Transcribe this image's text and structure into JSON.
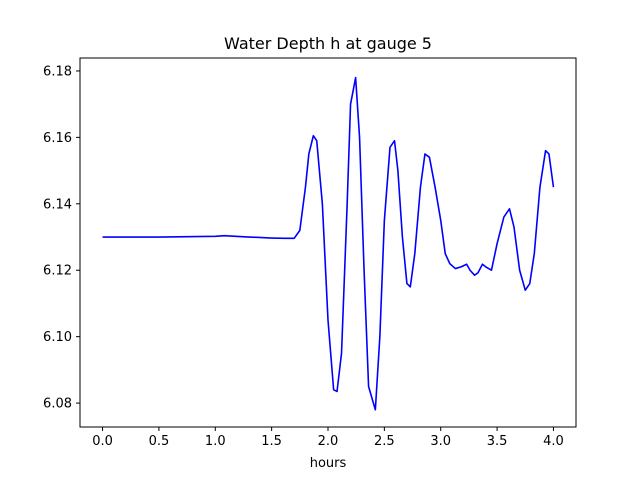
{
  "chart_data": {
    "type": "line",
    "title": "Water Depth h at gauge 5",
    "xlabel": "hours",
    "ylabel": "",
    "xlim": [
      -0.2,
      4.2
    ],
    "ylim": [
      6.0728,
      6.1839
    ],
    "xticks": [
      0.0,
      0.5,
      1.0,
      1.5,
      2.0,
      2.5,
      3.0,
      3.5,
      4.0
    ],
    "xtick_labels": [
      "0.0",
      "0.5",
      "1.0",
      "1.5",
      "2.0",
      "2.5",
      "3.0",
      "3.5",
      "4.0"
    ],
    "yticks": [
      6.08,
      6.1,
      6.12,
      6.14,
      6.16,
      6.18
    ],
    "ytick_labels": [
      "6.08",
      "6.10",
      "6.12",
      "6.14",
      "6.16",
      "6.18"
    ],
    "grid": false,
    "series": [
      {
        "color": "#0000ff",
        "x": [
          0.0,
          0.5,
          1.0,
          1.08,
          1.3,
          1.5,
          1.62,
          1.7,
          1.75,
          1.8,
          1.83,
          1.87,
          1.9,
          1.95,
          2.0,
          2.05,
          2.08,
          2.12,
          2.17,
          2.2,
          2.245,
          2.28,
          2.32,
          2.36,
          2.42,
          2.46,
          2.5,
          2.55,
          2.59,
          2.62,
          2.66,
          2.7,
          2.73,
          2.77,
          2.82,
          2.86,
          2.9,
          2.95,
          3.0,
          3.04,
          3.08,
          3.13,
          3.18,
          3.23,
          3.26,
          3.3,
          3.33,
          3.37,
          3.4,
          3.45,
          3.5,
          3.56,
          3.61,
          3.65,
          3.7,
          3.75,
          3.79,
          3.83,
          3.88,
          3.93,
          3.96,
          4.0
        ],
        "y": [
          6.13,
          6.13,
          6.1302,
          6.1304,
          6.13,
          6.1297,
          6.1296,
          6.1296,
          6.132,
          6.145,
          6.155,
          6.1605,
          6.159,
          6.14,
          6.105,
          6.084,
          6.0835,
          6.095,
          6.14,
          6.17,
          6.178,
          6.16,
          6.12,
          6.085,
          6.078,
          6.1,
          6.135,
          6.157,
          6.159,
          6.15,
          6.13,
          6.116,
          6.115,
          6.125,
          6.145,
          6.155,
          6.154,
          6.145,
          6.135,
          6.125,
          6.122,
          6.1205,
          6.121,
          6.1218,
          6.12,
          6.1185,
          6.1192,
          6.1218,
          6.121,
          6.12,
          6.128,
          6.136,
          6.1385,
          6.133,
          6.12,
          6.114,
          6.116,
          6.125,
          6.145,
          6.156,
          6.155,
          6.145
        ]
      }
    ]
  }
}
